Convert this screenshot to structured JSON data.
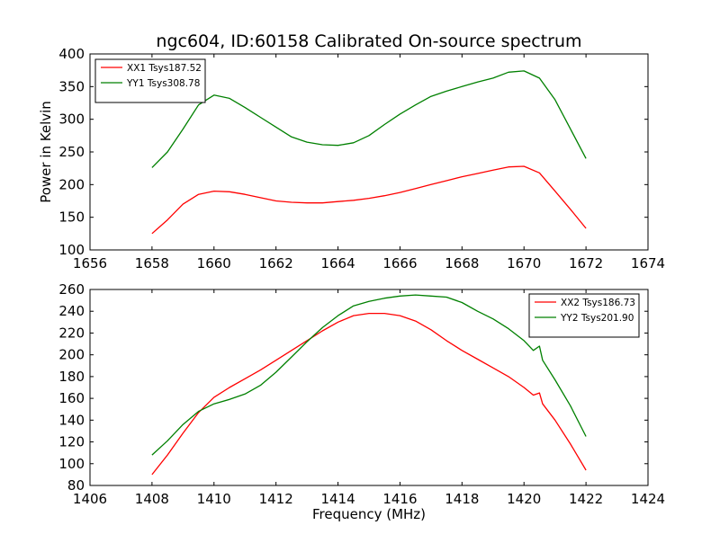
{
  "chart_data": [
    {
      "type": "line",
      "title": "ngc604, ID:60158 Calibrated On-source spectrum",
      "xlabel": "",
      "ylabel": "Power in Kelvin",
      "xlim": [
        1656,
        1674
      ],
      "ylim": [
        100,
        400
      ],
      "xticks": [
        1656,
        1658,
        1660,
        1662,
        1664,
        1666,
        1668,
        1670,
        1672,
        1674
      ],
      "yticks": [
        100,
        150,
        200,
        250,
        300,
        350,
        400
      ],
      "grid": false,
      "legend_position": "top-left",
      "series": [
        {
          "name": "XX1 Tsys187.52",
          "color": "#ff0000",
          "x": [
            1658.0,
            1658.5,
            1659.0,
            1659.5,
            1660.0,
            1660.5,
            1661.0,
            1661.5,
            1662.0,
            1662.5,
            1663.0,
            1663.5,
            1664.0,
            1664.5,
            1665.0,
            1665.5,
            1666.0,
            1666.5,
            1667.0,
            1667.5,
            1668.0,
            1668.5,
            1669.0,
            1669.5,
            1670.0,
            1670.5,
            1671.0,
            1671.5,
            1672.0
          ],
          "y": [
            125,
            146,
            170,
            185,
            190,
            189,
            185,
            180,
            175,
            173,
            172,
            172,
            174,
            176,
            179,
            183,
            188,
            194,
            200,
            206,
            212,
            217,
            222,
            227,
            228,
            218,
            190,
            162,
            133
          ]
        },
        {
          "name": "YY1 Tsys308.78",
          "color": "#008000",
          "x": [
            1658.0,
            1658.5,
            1659.0,
            1659.5,
            1660.0,
            1660.5,
            1661.0,
            1661.5,
            1662.0,
            1662.5,
            1663.0,
            1663.5,
            1664.0,
            1664.5,
            1665.0,
            1665.5,
            1666.0,
            1666.5,
            1667.0,
            1667.5,
            1668.0,
            1668.5,
            1669.0,
            1669.5,
            1670.0,
            1670.5,
            1671.0,
            1671.5,
            1672.0
          ],
          "y": [
            226,
            250,
            285,
            322,
            337,
            332,
            318,
            303,
            288,
            273,
            265,
            261,
            260,
            264,
            275,
            292,
            308,
            322,
            335,
            343,
            350,
            357,
            363,
            372,
            374,
            363,
            330,
            285,
            240
          ]
        }
      ]
    },
    {
      "type": "line",
      "title": "",
      "xlabel": "Frequency (MHz)",
      "ylabel": "",
      "xlim": [
        1406,
        1424
      ],
      "ylim": [
        80,
        260
      ],
      "xticks": [
        1406,
        1408,
        1410,
        1412,
        1414,
        1416,
        1418,
        1420,
        1422,
        1424
      ],
      "yticks": [
        80,
        100,
        120,
        140,
        160,
        180,
        200,
        220,
        240,
        260
      ],
      "grid": false,
      "legend_position": "top-right",
      "series": [
        {
          "name": "XX2 Tsys186.73",
          "color": "#ff0000",
          "x": [
            1408.0,
            1408.5,
            1409.0,
            1409.5,
            1410.0,
            1410.5,
            1411.0,
            1411.5,
            1412.0,
            1412.5,
            1413.0,
            1413.5,
            1414.0,
            1414.5,
            1415.0,
            1415.5,
            1416.0,
            1416.5,
            1417.0,
            1417.5,
            1418.0,
            1418.5,
            1419.0,
            1419.5,
            1420.0,
            1420.3,
            1420.5,
            1420.6,
            1421.0,
            1421.5,
            1422.0
          ],
          "y": [
            90,
            108,
            128,
            147,
            161,
            170,
            178,
            186,
            195,
            204,
            213,
            222,
            230,
            236,
            238,
            238,
            236,
            231,
            223,
            213,
            204,
            196,
            188,
            180,
            170,
            163,
            165,
            155,
            140,
            118,
            94
          ]
        },
        {
          "name": "YY2 Tsys201.90",
          "color": "#008000",
          "x": [
            1408.0,
            1408.5,
            1409.0,
            1409.5,
            1410.0,
            1410.5,
            1411.0,
            1411.5,
            1412.0,
            1412.5,
            1413.0,
            1413.5,
            1414.0,
            1414.5,
            1415.0,
            1415.5,
            1416.0,
            1416.5,
            1417.0,
            1417.5,
            1418.0,
            1418.5,
            1419.0,
            1419.5,
            1420.0,
            1420.3,
            1420.5,
            1420.6,
            1421.0,
            1421.5,
            1422.0
          ],
          "y": [
            108,
            121,
            136,
            148,
            155,
            159,
            164,
            172,
            184,
            198,
            212,
            225,
            236,
            245,
            249,
            252,
            254,
            255,
            254,
            253,
            248,
            240,
            233,
            224,
            213,
            204,
            208,
            195,
            177,
            153,
            125
          ]
        }
      ]
    }
  ]
}
